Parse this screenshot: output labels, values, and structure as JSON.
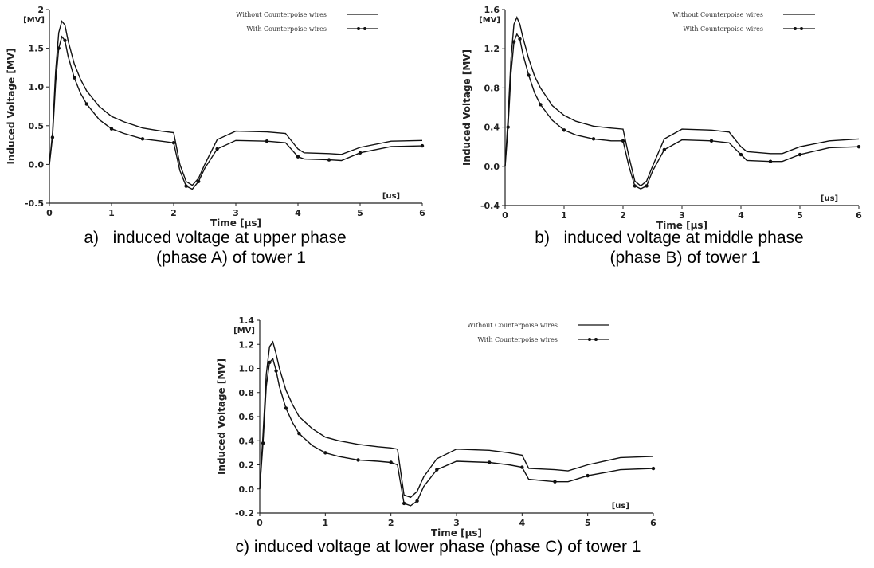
{
  "captions": [
    {
      "label": "a)",
      "line1": "induced voltage at upper phase",
      "line2": "(phase A) of tower 1"
    },
    {
      "label": "b)",
      "line1": "induced voltage at middle phase",
      "line2": "(phase B) of tower 1"
    },
    {
      "label": "",
      "line1": "c) induced voltage at lower phase (phase C) of tower 1",
      "line2": ""
    }
  ],
  "chart_data": [
    {
      "type": "line",
      "xlabel": "Time [µs]",
      "ylabel": "Induced Voltage [MV]",
      "x_unit": "[us]",
      "y_unit": "[MV]",
      "xlim": [
        0,
        6
      ],
      "ylim": [
        -0.5,
        2
      ],
      "x_ticks": [
        "0",
        "1",
        "2",
        "3",
        "4",
        "5",
        "6"
      ],
      "y_ticks": [
        "-0.5",
        "0.0",
        "0.5",
        "1.0",
        "1.5",
        "2"
      ],
      "grid": false,
      "legend_position": "top-right",
      "series": [
        {
          "name": "Without Counterpoise wires",
          "style": "solid",
          "x": [
            0,
            0.05,
            0.1,
            0.15,
            0.2,
            0.25,
            0.3,
            0.4,
            0.5,
            0.6,
            0.8,
            1.0,
            1.2,
            1.5,
            1.8,
            2.0,
            2.1,
            2.2,
            2.3,
            2.4,
            2.5,
            2.7,
            3.0,
            3.5,
            3.8,
            4.0,
            4.1,
            4.5,
            4.7,
            5.0,
            5.5,
            6.0
          ],
          "y": [
            0,
            0.4,
            1.2,
            1.7,
            1.85,
            1.8,
            1.6,
            1.3,
            1.1,
            0.95,
            0.75,
            0.62,
            0.55,
            0.47,
            0.43,
            0.41,
            0.0,
            -0.22,
            -0.27,
            -0.18,
            0.0,
            0.32,
            0.43,
            0.42,
            0.4,
            0.2,
            0.15,
            0.14,
            0.13,
            0.22,
            0.3,
            0.31
          ]
        },
        {
          "name": "With Counterpoise wires",
          "style": "solid-markers",
          "x": [
            0,
            0.05,
            0.1,
            0.15,
            0.2,
            0.25,
            0.3,
            0.4,
            0.5,
            0.6,
            0.8,
            1.0,
            1.2,
            1.5,
            1.8,
            2.0,
            2.1,
            2.2,
            2.3,
            2.4,
            2.5,
            2.7,
            3.0,
            3.5,
            3.8,
            4.0,
            4.1,
            4.5,
            4.7,
            5.0,
            5.5,
            6.0
          ],
          "y": [
            0,
            0.35,
            1.05,
            1.5,
            1.65,
            1.6,
            1.4,
            1.12,
            0.92,
            0.78,
            0.58,
            0.46,
            0.4,
            0.33,
            0.3,
            0.28,
            -0.08,
            -0.28,
            -0.32,
            -0.22,
            -0.05,
            0.2,
            0.31,
            0.3,
            0.28,
            0.1,
            0.07,
            0.06,
            0.05,
            0.15,
            0.23,
            0.24
          ]
        }
      ]
    },
    {
      "type": "line",
      "xlabel": "Time [µs]",
      "ylabel": "Induced Voltage [MV]",
      "x_unit": "[us]",
      "y_unit": "[MV]",
      "xlim": [
        0,
        6
      ],
      "ylim": [
        -0.4,
        1.6
      ],
      "x_ticks": [
        "0",
        "1",
        "2",
        "3",
        "4",
        "5",
        "6"
      ],
      "y_ticks": [
        "-0.4",
        "0.0",
        "0.4",
        "0.8",
        "1.2",
        "1.6"
      ],
      "grid": false,
      "legend_position": "top-right",
      "series": [
        {
          "name": "Without Counterpoise wires",
          "style": "solid",
          "x": [
            0,
            0.05,
            0.1,
            0.15,
            0.2,
            0.25,
            0.3,
            0.4,
            0.5,
            0.6,
            0.8,
            1.0,
            1.2,
            1.5,
            1.8,
            2.0,
            2.1,
            2.2,
            2.3,
            2.4,
            2.5,
            2.7,
            3.0,
            3.5,
            3.8,
            4.0,
            4.1,
            4.5,
            4.7,
            5.0,
            5.5,
            6.0
          ],
          "y": [
            0,
            0.5,
            1.1,
            1.45,
            1.52,
            1.45,
            1.32,
            1.1,
            0.92,
            0.8,
            0.62,
            0.52,
            0.46,
            0.41,
            0.39,
            0.38,
            0.1,
            -0.15,
            -0.2,
            -0.15,
            0.0,
            0.28,
            0.38,
            0.37,
            0.35,
            0.2,
            0.15,
            0.13,
            0.13,
            0.2,
            0.26,
            0.28
          ]
        },
        {
          "name": "With Counterpoise wires",
          "style": "solid-markers",
          "x": [
            0,
            0.05,
            0.1,
            0.15,
            0.2,
            0.25,
            0.3,
            0.4,
            0.5,
            0.6,
            0.8,
            1.0,
            1.2,
            1.5,
            1.8,
            2.0,
            2.1,
            2.2,
            2.3,
            2.4,
            2.5,
            2.7,
            3.0,
            3.5,
            3.8,
            4.0,
            4.1,
            4.5,
            4.7,
            5.0,
            5.5,
            6.0
          ],
          "y": [
            0,
            0.4,
            0.95,
            1.27,
            1.35,
            1.3,
            1.15,
            0.93,
            0.75,
            0.63,
            0.47,
            0.37,
            0.32,
            0.28,
            0.26,
            0.26,
            0.0,
            -0.2,
            -0.23,
            -0.2,
            -0.05,
            0.17,
            0.27,
            0.26,
            0.24,
            0.12,
            0.06,
            0.05,
            0.05,
            0.12,
            0.19,
            0.2
          ]
        }
      ]
    },
    {
      "type": "line",
      "xlabel": "Time [µs]",
      "ylabel": "Induced Voltage [MV]",
      "x_unit": "[us]",
      "y_unit": "[MV]",
      "xlim": [
        0,
        6
      ],
      "ylim": [
        -0.2,
        1.4
      ],
      "x_ticks": [
        "0",
        "1",
        "2",
        "3",
        "4",
        "5",
        "6"
      ],
      "y_ticks": [
        "-0.2",
        "0.0",
        "0.2",
        "0.4",
        "0.6",
        "0.8",
        "1.0",
        "1.2",
        "1.4"
      ],
      "grid": false,
      "legend_position": "top-right",
      "series": [
        {
          "name": "Without Counterpoise wires",
          "style": "solid",
          "x": [
            0,
            0.05,
            0.1,
            0.15,
            0.2,
            0.25,
            0.3,
            0.4,
            0.5,
            0.6,
            0.8,
            1.0,
            1.2,
            1.5,
            1.8,
            2.0,
            2.1,
            2.2,
            2.3,
            2.4,
            2.5,
            2.7,
            3.0,
            3.5,
            3.8,
            4.0,
            4.1,
            4.5,
            4.7,
            5.0,
            5.5,
            6.0
          ],
          "y": [
            0,
            0.45,
            0.95,
            1.18,
            1.22,
            1.12,
            1.0,
            0.82,
            0.7,
            0.6,
            0.5,
            0.43,
            0.4,
            0.37,
            0.35,
            0.34,
            0.33,
            -0.05,
            -0.07,
            -0.02,
            0.1,
            0.25,
            0.33,
            0.32,
            0.3,
            0.28,
            0.17,
            0.16,
            0.15,
            0.2,
            0.26,
            0.27
          ]
        },
        {
          "name": "With Counterpoise wires",
          "style": "solid-markers",
          "x": [
            0,
            0.05,
            0.1,
            0.15,
            0.2,
            0.25,
            0.3,
            0.4,
            0.5,
            0.6,
            0.8,
            1.0,
            1.2,
            1.5,
            1.8,
            2.0,
            2.1,
            2.2,
            2.3,
            2.4,
            2.5,
            2.7,
            3.0,
            3.5,
            3.8,
            4.0,
            4.1,
            4.5,
            4.7,
            5.0,
            5.5,
            6.0
          ],
          "y": [
            0,
            0.38,
            0.85,
            1.05,
            1.08,
            0.98,
            0.85,
            0.67,
            0.55,
            0.46,
            0.36,
            0.3,
            0.27,
            0.24,
            0.23,
            0.22,
            0.2,
            -0.12,
            -0.14,
            -0.1,
            0.02,
            0.16,
            0.23,
            0.22,
            0.2,
            0.18,
            0.08,
            0.06,
            0.06,
            0.11,
            0.16,
            0.17
          ]
        }
      ]
    }
  ]
}
